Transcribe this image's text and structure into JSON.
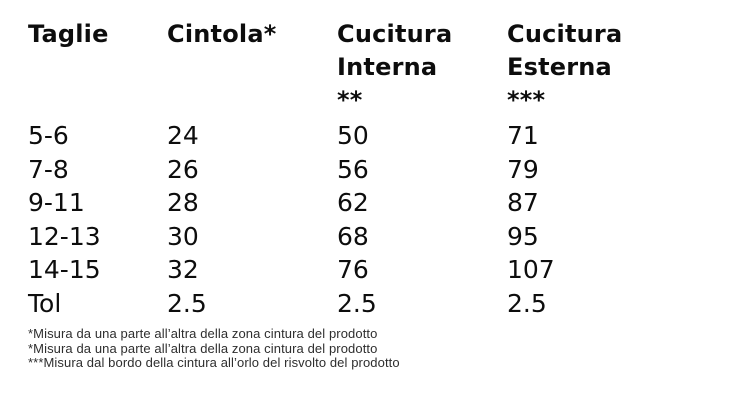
{
  "table": {
    "headers": [
      "Taglie",
      "Cintola*",
      "Cucitura\nInterna\n**",
      "Cucitura\nEsterna\n***"
    ],
    "rows": [
      [
        "5-6",
        "24",
        "50",
        "71"
      ],
      [
        "7-8",
        "26",
        "56",
        "79"
      ],
      [
        "9-11",
        "28",
        "62",
        "87"
      ],
      [
        "12-13",
        "30",
        "68",
        "95"
      ],
      [
        "14-15",
        "32",
        "76",
        "107"
      ],
      [
        "Tol",
        "2.5",
        "2.5",
        "2.5"
      ]
    ]
  },
  "footnotes": [
    "*Misura da una parte all’altra della zona cintura del prodotto",
    "*Misura da una parte all’altra della zona cintura del prodotto",
    "***Misura dal bordo della cintura all’orlo del risvolto del prodotto"
  ],
  "colors": {
    "background": "#ffffff",
    "table_text": "#0d0d0d",
    "footnote_text": "#2e2e2e"
  }
}
